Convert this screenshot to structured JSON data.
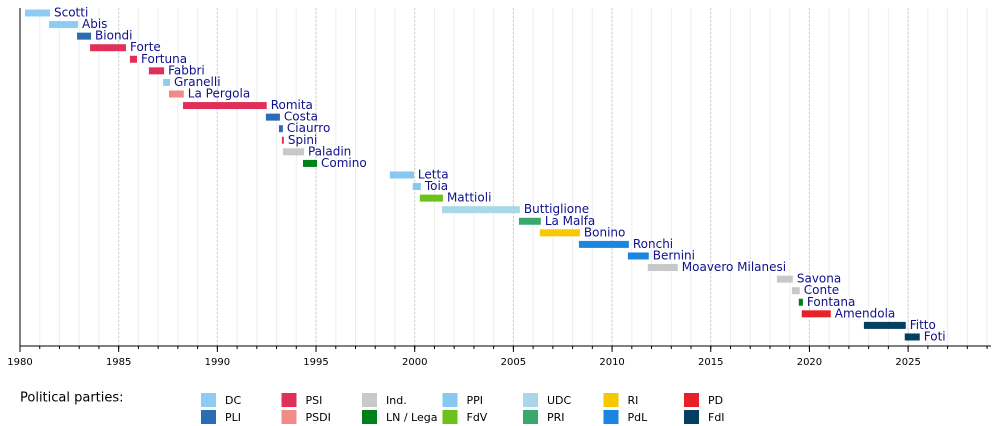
{
  "chart_data": {
    "type": "timeline",
    "xlim": [
      1980,
      2029.2
    ],
    "xticks": [
      1980,
      1985,
      1990,
      1995,
      2000,
      2005,
      2010,
      2015,
      2020,
      2025
    ],
    "grid": true,
    "legend_title": "Political parties:",
    "parties": [
      {
        "name": "DC",
        "color": "#8ecdf3"
      },
      {
        "name": "PLI",
        "color": "#2a6db5"
      },
      {
        "name": "PSI",
        "color": "#e0305a"
      },
      {
        "name": "PSDI",
        "color": "#f28a8a"
      },
      {
        "name": "Ind.",
        "color": "#c8c8c8"
      },
      {
        "name": "LN / Lega",
        "color": "#00801a"
      },
      {
        "name": "PPI",
        "color": "#86c8f0"
      },
      {
        "name": "FdV",
        "color": "#6cc21a"
      },
      {
        "name": "UDC",
        "color": "#a9d6e8"
      },
      {
        "name": "PRI",
        "color": "#3aa86c"
      },
      {
        "name": "RI",
        "color": "#f5c800"
      },
      {
        "name": "PdL",
        "color": "#1a86e0"
      },
      {
        "name": "PD",
        "color": "#e8202a"
      },
      {
        "name": "FdI",
        "color": "#033e63"
      }
    ],
    "bars": [
      {
        "name": "Scotti",
        "start": 1980.25,
        "end": 1981.52,
        "party": "DC"
      },
      {
        "name": "Abis",
        "start": 1981.47,
        "end": 1982.94,
        "party": "DC"
      },
      {
        "name": "Biondi",
        "start": 1982.89,
        "end": 1983.6,
        "party": "PLI"
      },
      {
        "name": "Forte",
        "start": 1983.55,
        "end": 1985.37,
        "party": "PSI"
      },
      {
        "name": "Fortuna",
        "start": 1985.57,
        "end": 1985.93,
        "party": "PSI"
      },
      {
        "name": "Fabbri",
        "start": 1986.53,
        "end": 1987.3,
        "party": "PSI"
      },
      {
        "name": "Granelli",
        "start": 1987.25,
        "end": 1987.6,
        "party": "DC"
      },
      {
        "name": "La Pergola",
        "start": 1987.55,
        "end": 1988.3,
        "party": "PSDI"
      },
      {
        "name": "Romita",
        "start": 1988.26,
        "end": 1992.5,
        "party": "PSI"
      },
      {
        "name": "Costa",
        "start": 1992.46,
        "end": 1993.17,
        "party": "PLI"
      },
      {
        "name": "Ciaurro",
        "start": 1993.12,
        "end": 1993.32,
        "party": "PLI"
      },
      {
        "name": "Spini",
        "start": 1993.27,
        "end": 1993.37,
        "party": "PSI"
      },
      {
        "name": "Paladin",
        "start": 1993.32,
        "end": 1994.39,
        "party": "Ind."
      },
      {
        "name": "Comino",
        "start": 1994.34,
        "end": 1995.05,
        "party": "LN / Lega"
      },
      {
        "name": "Letta",
        "start": 1998.74,
        "end": 1999.96,
        "party": "PPI"
      },
      {
        "name": "Toia",
        "start": 1999.9,
        "end": 2000.31,
        "party": "PPI"
      },
      {
        "name": "Mattioli",
        "start": 2000.26,
        "end": 2001.43,
        "party": "FdV"
      },
      {
        "name": "Buttiglione",
        "start": 2001.38,
        "end": 2005.33,
        "party": "UDC"
      },
      {
        "name": "La Malfa",
        "start": 2005.28,
        "end": 2006.39,
        "party": "PRI"
      },
      {
        "name": "Bonino",
        "start": 2006.34,
        "end": 2008.37,
        "party": "RI"
      },
      {
        "name": "Ronchi",
        "start": 2008.32,
        "end": 2010.85,
        "party": "PdL"
      },
      {
        "name": "Bernini",
        "start": 2010.8,
        "end": 2011.86,
        "party": "PdL"
      },
      {
        "name": "Moavero Milanesi",
        "start": 2011.81,
        "end": 2013.33,
        "party": "Ind."
      },
      {
        "name": "Savona",
        "start": 2018.35,
        "end": 2019.16,
        "party": "Ind."
      },
      {
        "name": "Conte",
        "start": 2019.11,
        "end": 2019.51,
        "party": "Ind."
      },
      {
        "name": "Fontana",
        "start": 2019.46,
        "end": 2019.67,
        "party": "LN / Lega"
      },
      {
        "name": "Amendola",
        "start": 2019.61,
        "end": 2021.08,
        "party": "PD"
      },
      {
        "name": "Fitto",
        "start": 2022.76,
        "end": 2024.88,
        "party": "FdI"
      },
      {
        "name": "Foti",
        "start": 2024.83,
        "end": 2025.59,
        "party": "FdI"
      }
    ]
  }
}
